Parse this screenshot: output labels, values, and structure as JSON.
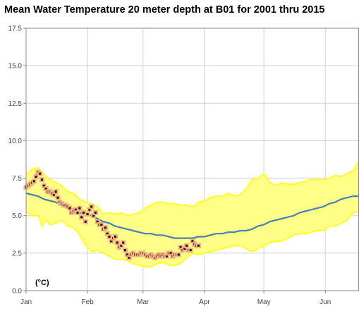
{
  "chart_data": {
    "type": "line",
    "title": "Mean Water Temperature 20 meter depth at B01 for 2001 thru 2015",
    "unit_label": "(°C)",
    "ylim": [
      0,
      17.5
    ],
    "y_ticks": [
      "0.0",
      "2.5",
      "5.0",
      "7.5",
      "10.0",
      "12.5",
      "15.0",
      "17.5"
    ],
    "x_tick_labels": [
      "Jan",
      "Feb",
      "Mar",
      "Apr",
      "May",
      "Jun"
    ],
    "xlim_days": [
      0,
      168
    ],
    "x_tick_days": [
      0,
      31,
      59,
      90,
      120,
      151
    ],
    "grid": true,
    "colors": {
      "band": "#ffff88",
      "band_edge": "#ffff22",
      "mean": "#4682b4",
      "obs_face": "#f4b080",
      "obs_center": "#111111",
      "grid": "#d0d0d0"
    },
    "series": [
      {
        "role": "range",
        "x": [
          0,
          3,
          6,
          8,
          10,
          12,
          15,
          18,
          21,
          24,
          27,
          30,
          33,
          36,
          39,
          42,
          45,
          48,
          51,
          54,
          57,
          60,
          63,
          66,
          69,
          72,
          75,
          78,
          81,
          84,
          87,
          90,
          93,
          96,
          99,
          102,
          105,
          108,
          111,
          114,
          117,
          120,
          123,
          126,
          129,
          132,
          135,
          138,
          141,
          144,
          147,
          150,
          153,
          156,
          159,
          162,
          165,
          168
        ],
        "upper": [
          7.7,
          8.1,
          8.2,
          7.9,
          7.6,
          7.4,
          7.2,
          7.0,
          6.6,
          6.5,
          6.1,
          5.9,
          5.8,
          5.6,
          5.1,
          5.2,
          5.1,
          5.2,
          5.0,
          5.1,
          5.2,
          5.5,
          5.7,
          5.9,
          5.9,
          5.8,
          5.8,
          5.7,
          5.7,
          5.6,
          5.9,
          6.0,
          6.2,
          6.3,
          6.3,
          6.5,
          6.3,
          6.4,
          6.8,
          7.4,
          7.5,
          7.8,
          7.2,
          7.0,
          7.2,
          7.1,
          7.1,
          7.2,
          7.3,
          7.4,
          7.4,
          7.4,
          7.5,
          7.7,
          7.6,
          7.8,
          8.0,
          8.7
        ],
        "lower": [
          5.3,
          5.0,
          5.0,
          4.3,
          4.7,
          4.4,
          4.5,
          4.7,
          4.3,
          4.2,
          3.7,
          3.0,
          2.6,
          2.7,
          2.5,
          2.3,
          2.1,
          2.1,
          2.0,
          1.8,
          1.7,
          1.6,
          1.6,
          1.8,
          1.9,
          1.7,
          1.7,
          1.8,
          2.2,
          2.5,
          2.4,
          2.5,
          2.6,
          2.7,
          2.8,
          2.9,
          3.0,
          3.0,
          2.8,
          2.6,
          2.8,
          3.0,
          3.2,
          3.3,
          3.3,
          3.5,
          3.7,
          3.8,
          3.8,
          3.9,
          4.0,
          4.0,
          4.3,
          4.3,
          4.5,
          4.7,
          5.2,
          5.3
        ]
      },
      {
        "role": "mean",
        "x": [
          0,
          3,
          6,
          9,
          12,
          15,
          18,
          21,
          24,
          27,
          30,
          33,
          36,
          39,
          42,
          45,
          48,
          51,
          54,
          57,
          60,
          63,
          66,
          69,
          72,
          75,
          78,
          81,
          84,
          87,
          90,
          93,
          96,
          99,
          102,
          105,
          108,
          111,
          114,
          117,
          120,
          123,
          126,
          129,
          132,
          135,
          138,
          141,
          144,
          147,
          150,
          153,
          156,
          159,
          162,
          165,
          168
        ],
        "values": [
          6.5,
          6.4,
          6.3,
          6.1,
          6.0,
          5.9,
          5.7,
          5.6,
          5.4,
          5.2,
          5.1,
          5.0,
          4.8,
          4.6,
          4.5,
          4.3,
          4.2,
          4.1,
          4.0,
          3.9,
          3.8,
          3.8,
          3.7,
          3.7,
          3.6,
          3.5,
          3.5,
          3.5,
          3.5,
          3.6,
          3.6,
          3.7,
          3.8,
          3.8,
          3.9,
          3.9,
          4.0,
          4.0,
          4.1,
          4.3,
          4.4,
          4.6,
          4.7,
          4.8,
          4.9,
          5.0,
          5.2,
          5.3,
          5.4,
          5.5,
          5.6,
          5.8,
          5.9,
          6.1,
          6.2,
          6.3,
          6.3
        ]
      },
      {
        "role": "observed",
        "x": [
          0,
          1,
          2,
          3,
          4,
          5,
          6,
          7,
          8,
          9,
          10,
          11,
          12,
          13,
          14,
          15,
          16,
          17,
          18,
          19,
          20,
          21,
          22,
          23,
          24,
          25,
          26,
          27,
          28,
          29,
          30,
          31,
          32,
          33,
          34,
          35,
          36,
          37,
          38,
          39,
          40,
          41,
          42,
          43,
          44,
          45,
          46,
          47,
          48,
          49,
          50,
          51,
          52,
          53,
          54,
          55,
          56,
          57,
          58,
          59,
          60,
          61,
          62,
          63,
          64,
          65,
          66,
          67,
          68,
          69,
          70,
          71,
          72,
          73,
          74,
          75,
          76,
          77,
          78,
          79,
          80,
          81,
          82,
          83,
          84,
          85,
          86,
          87
        ],
        "values": [
          6.9,
          7.0,
          7.1,
          7.2,
          7.3,
          7.6,
          7.9,
          7.8,
          7.4,
          7.0,
          6.8,
          6.6,
          6.6,
          6.5,
          6.4,
          6.6,
          6.2,
          5.9,
          5.8,
          5.7,
          5.7,
          5.6,
          5.5,
          5.2,
          5.3,
          5.4,
          5.2,
          5.5,
          4.9,
          5.2,
          4.6,
          5.1,
          5.4,
          5.6,
          5.0,
          5.2,
          4.6,
          4.4,
          4.4,
          4.1,
          4.2,
          3.8,
          3.6,
          3.3,
          3.5,
          3.6,
          3.2,
          2.9,
          3.0,
          3.2,
          2.7,
          2.4,
          2.2,
          2.4,
          2.5,
          2.4,
          2.4,
          2.4,
          2.5,
          2.5,
          2.4,
          2.3,
          2.3,
          2.4,
          2.3,
          2.2,
          2.3,
          2.4,
          2.3,
          2.4,
          2.3,
          2.3,
          2.5,
          2.5,
          2.3,
          2.4,
          2.4,
          2.4,
          2.9,
          2.7,
          2.8,
          3.0,
          2.7,
          2.7,
          3.3,
          3.1,
          3.0,
          3.0
        ]
      }
    ]
  }
}
